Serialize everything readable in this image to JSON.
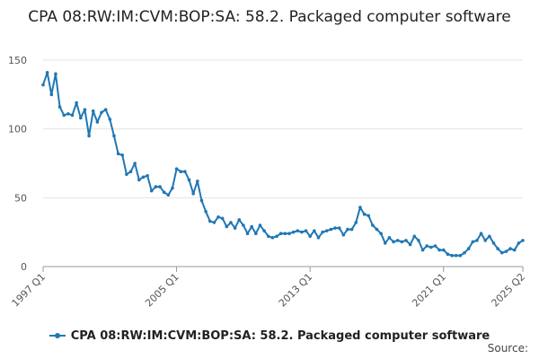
{
  "chart_data": {
    "type": "line",
    "title": "CPA 08:RW:IM:CVM:BOP:SA: 58.2. Packaged computer software",
    "xlabel": "",
    "ylabel": "",
    "ylim": [
      0,
      150
    ],
    "yticks": [
      0,
      50,
      100,
      150
    ],
    "xtick_labels": [
      "1997 Q1",
      "2005 Q1",
      "2013 Q1",
      "2021 Q1",
      "2025 Q2"
    ],
    "grid": true,
    "legend_position": "bottom",
    "x_start": "1997 Q1",
    "frequency": "monthly",
    "series": [
      {
        "name": "CPA 08:RW:IM:CVM:BOP:SA: 58.2. Packaged computer software",
        "color": "#1f77b4",
        "values": [
          132,
          141,
          125,
          140,
          116,
          110,
          111,
          110,
          119,
          108,
          114,
          95,
          113,
          105,
          112,
          114,
          107,
          95,
          82,
          81,
          67,
          69,
          75,
          63,
          65,
          66,
          55,
          58,
          58,
          54,
          52,
          57,
          71,
          69,
          69,
          63,
          53,
          62,
          48,
          40,
          33,
          32,
          36,
          35,
          29,
          32,
          28,
          34,
          30,
          24,
          29,
          24,
          30,
          26,
          22,
          21,
          22,
          24,
          24,
          24,
          25,
          26,
          25,
          26,
          22,
          26,
          21,
          25,
          26,
          27,
          28,
          28,
          23,
          27,
          27,
          32,
          43,
          38,
          37,
          30,
          27,
          24,
          17,
          21,
          18,
          19,
          18,
          19,
          16,
          22,
          19,
          12,
          15,
          14,
          15,
          12,
          12,
          9,
          8,
          8,
          8,
          10,
          13,
          18,
          19,
          24,
          19,
          22,
          17,
          13,
          10,
          11,
          13,
          12,
          17,
          19
        ]
      }
    ]
  },
  "legend": {
    "label": "CPA 08:RW:IM:CVM:BOP:SA: 58.2. Packaged computer software"
  },
  "source_label": "Source:"
}
